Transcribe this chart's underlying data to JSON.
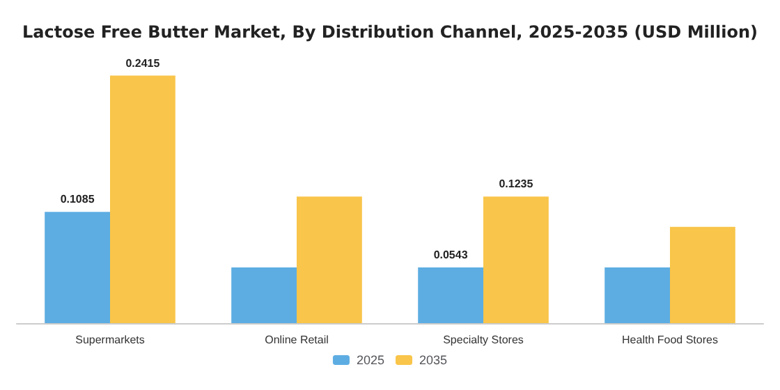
{
  "chart_data": {
    "type": "bar",
    "title": "Lactose Free Butter Market, By Distribution Channel, 2025-2035 (USD Million)",
    "categories": [
      "Supermarkets",
      "Online Retail",
      "Specialty Stores",
      "Health Food Stores"
    ],
    "series": [
      {
        "name": "2025",
        "color": "#5dade2",
        "values": [
          0.1085,
          0.0543,
          0.0543,
          0.0543
        ],
        "value_labels": [
          "0.1085",
          null,
          "0.0543",
          null
        ]
      },
      {
        "name": "2035",
        "color": "#f9c54a",
        "values": [
          0.2415,
          0.1235,
          0.1235,
          0.094
        ],
        "value_labels": [
          "0.2415",
          null,
          "0.1235",
          null
        ]
      }
    ],
    "legend": "bottom"
  }
}
